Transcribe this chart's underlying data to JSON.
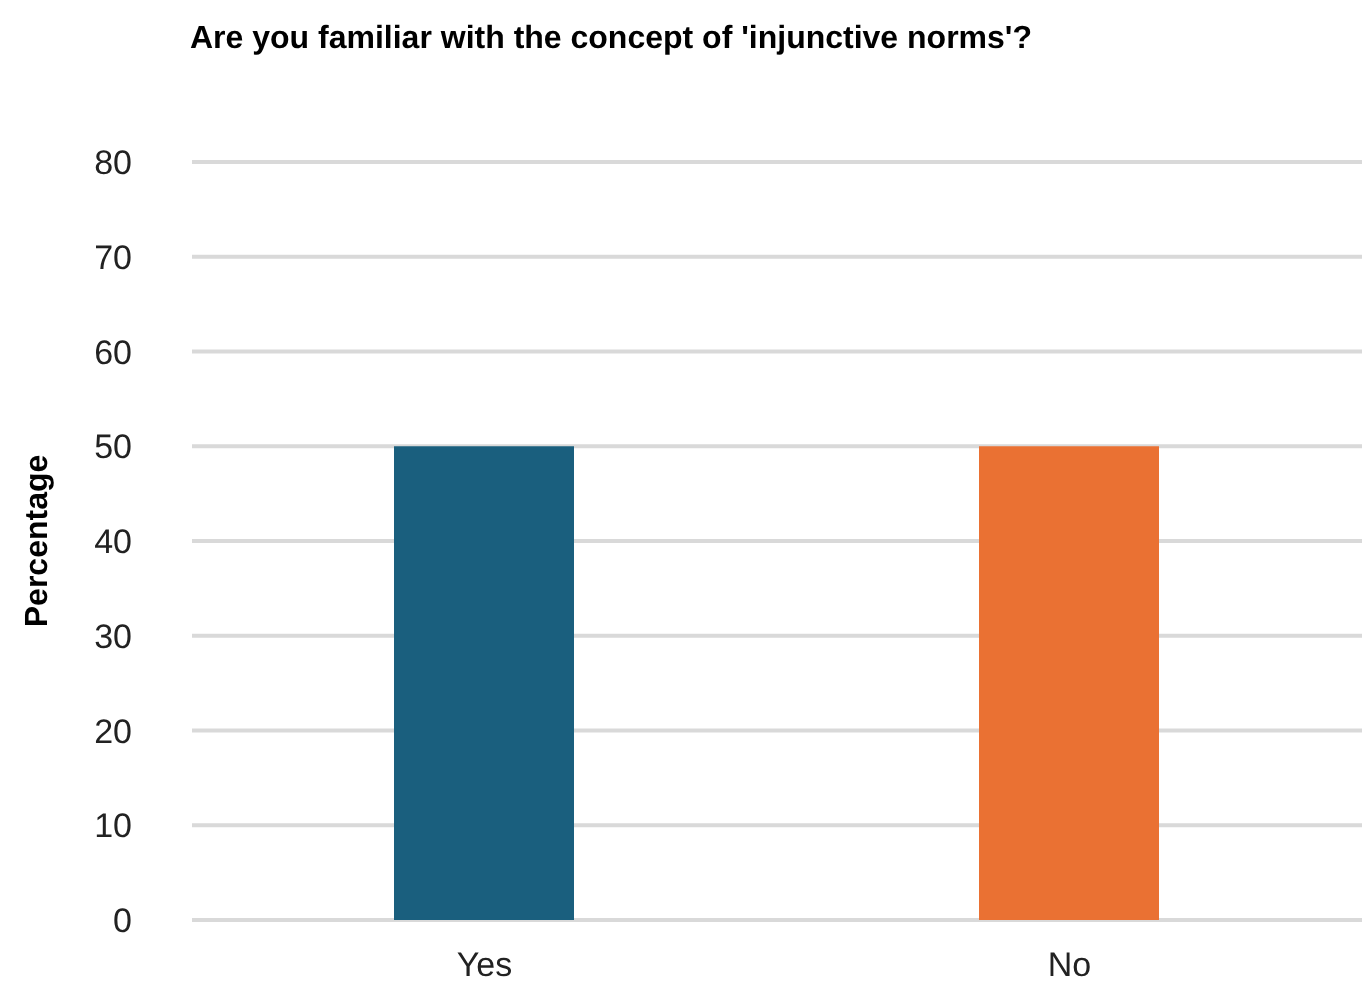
{
  "chart_data": {
    "type": "bar",
    "title": "Are you familiar with the concept of 'injunctive norms'?",
    "ylabel": "Percentage",
    "categories": [
      "Yes",
      "No"
    ],
    "values": [
      50,
      50
    ],
    "colors": [
      "#1a5f7e",
      "#ea7133"
    ],
    "ylim": [
      0,
      80
    ],
    "yticks": [
      0,
      10,
      20,
      30,
      40,
      50,
      60,
      70,
      80
    ],
    "grid": "y"
  }
}
